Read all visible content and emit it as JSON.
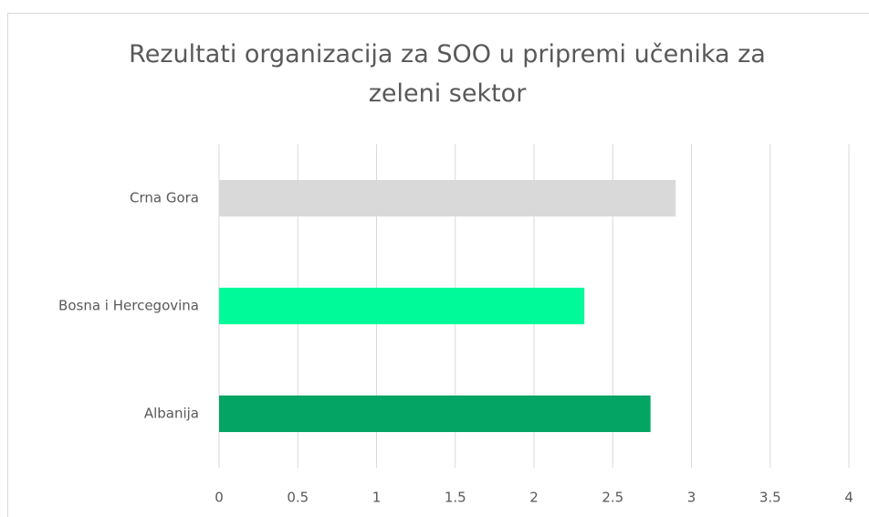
{
  "chart_data": {
    "type": "bar",
    "orientation": "horizontal",
    "title": "Rezultati organizacija za SOO u pripremi učenika za zeleni sektor",
    "categories": [
      "Crna Gora",
      "Bosna i Hercegovina",
      "Albanija"
    ],
    "values": [
      2.9,
      2.32,
      2.74
    ],
    "colors": [
      "#d9d9d9",
      "#00fa9a",
      "#04a464"
    ],
    "xlim": [
      0,
      4
    ],
    "xticks": [
      0,
      0.5,
      1,
      1.5,
      2,
      2.5,
      3,
      3.5,
      4
    ],
    "grid": true
  }
}
